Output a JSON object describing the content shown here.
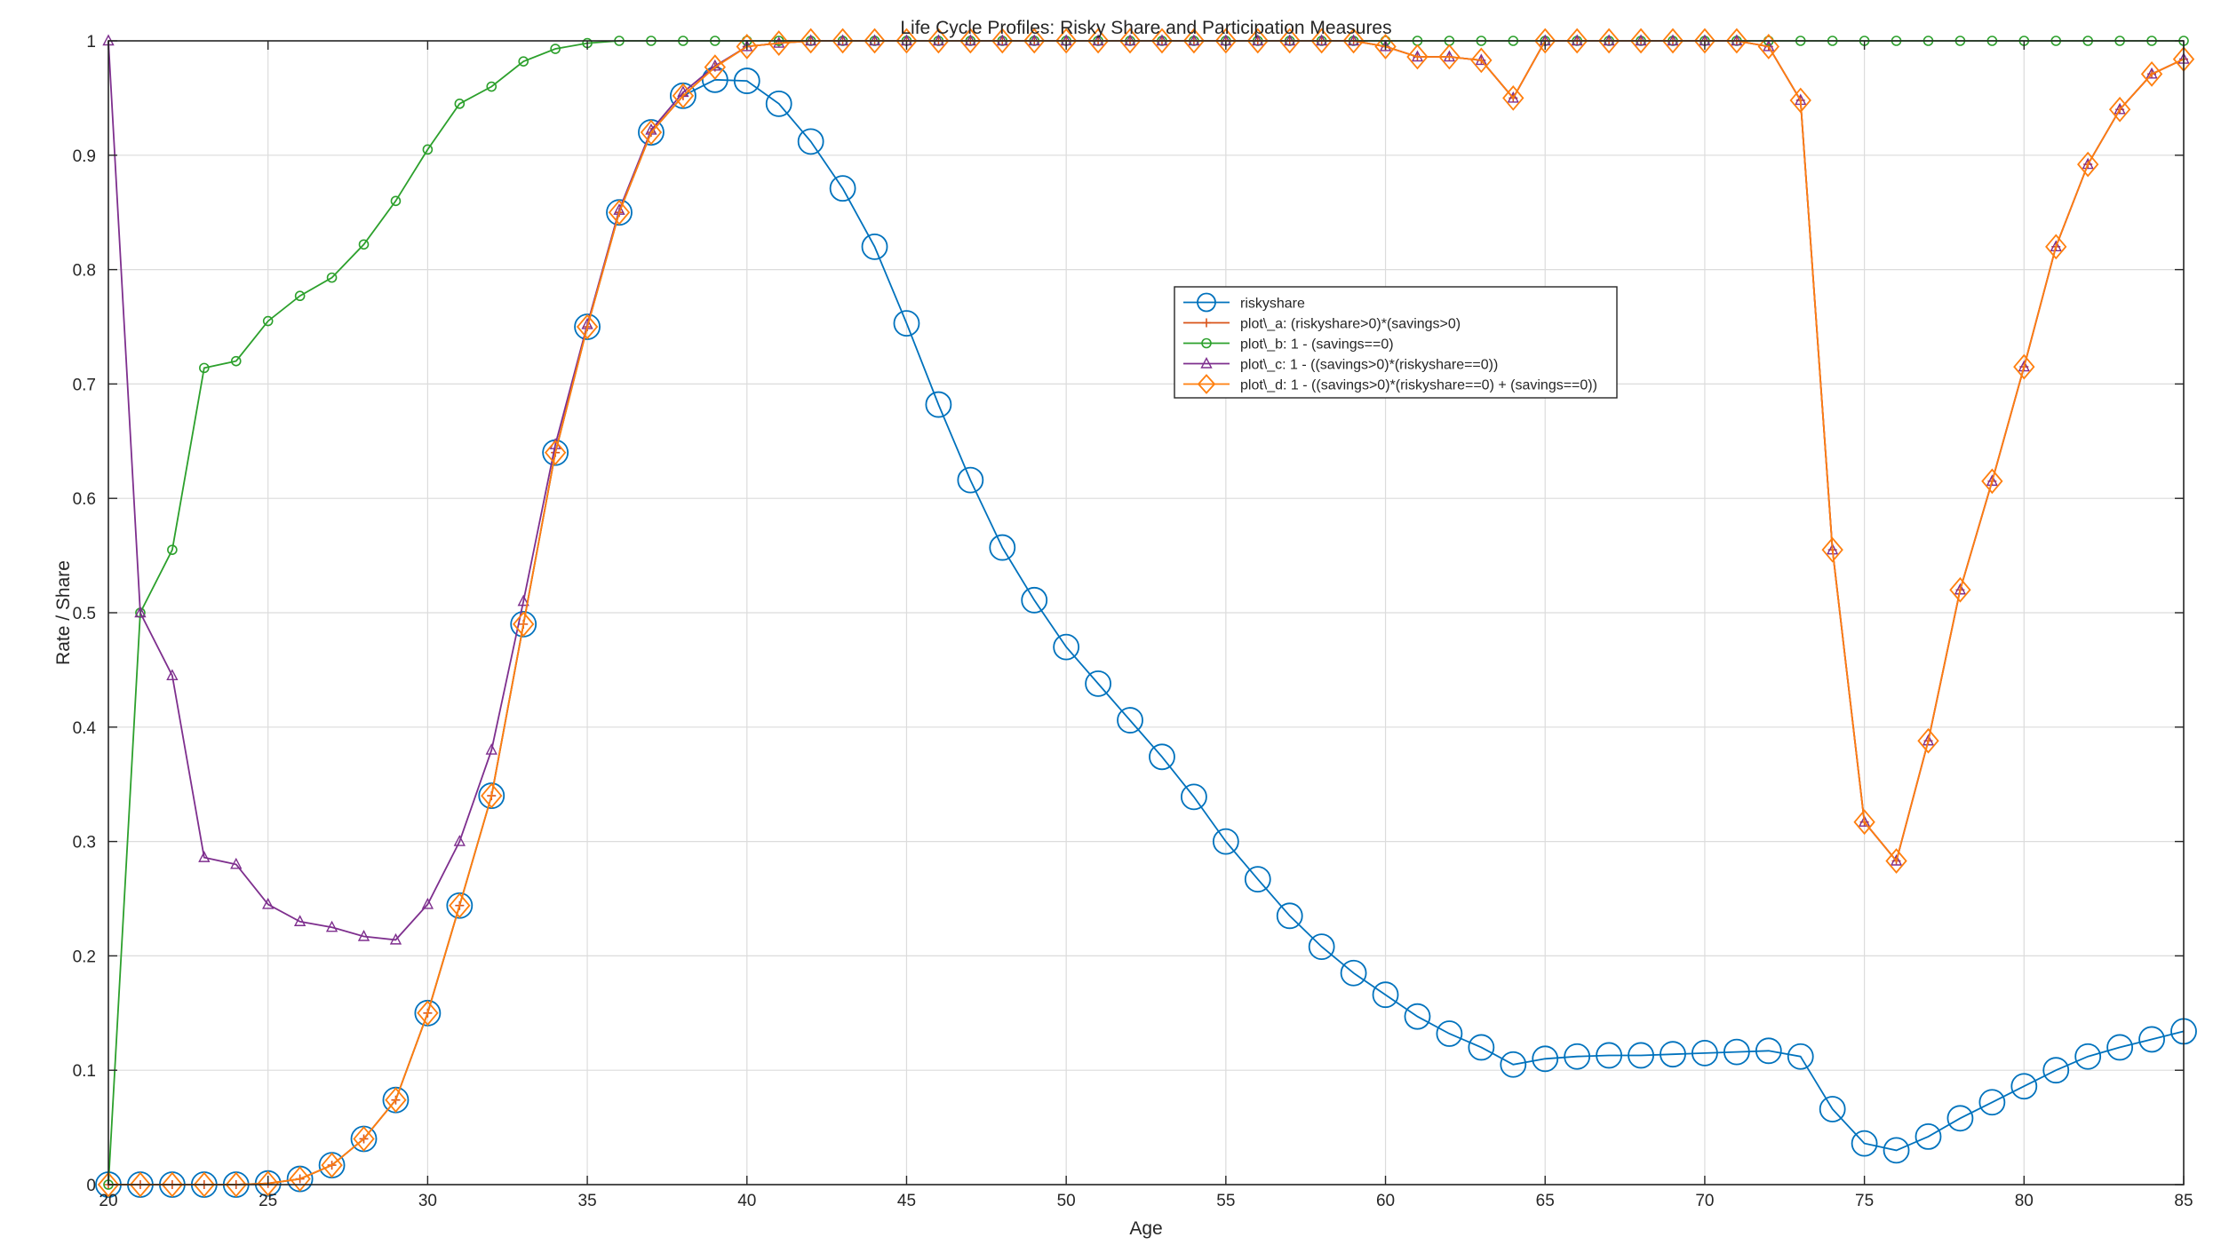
{
  "chart_data": {
    "type": "line",
    "title": "Life Cycle Profiles: Risky Share and Participation Measures",
    "xlabel": "Age",
    "ylabel": "Rate / Share",
    "xlim": [
      20,
      85
    ],
    "ylim": [
      0,
      1
    ],
    "xticks": [
      "20",
      "25",
      "30",
      "35",
      "40",
      "45",
      "50",
      "55",
      "60",
      "65",
      "70",
      "75",
      "80",
      "85"
    ],
    "yticks": [
      "0",
      "0.1",
      "0.2",
      "0.3",
      "0.4",
      "0.5",
      "0.6",
      "0.7",
      "0.8",
      "0.9",
      "1"
    ],
    "grid": true,
    "legend_position": "center",
    "x": [
      20,
      21,
      22,
      23,
      24,
      25,
      26,
      27,
      28,
      29,
      30,
      31,
      32,
      33,
      34,
      35,
      36,
      37,
      38,
      39,
      40,
      41,
      42,
      43,
      44,
      45,
      46,
      47,
      48,
      49,
      50,
      51,
      52,
      53,
      54,
      55,
      56,
      57,
      58,
      59,
      60,
      61,
      62,
      63,
      64,
      65,
      66,
      67,
      68,
      69,
      70,
      71,
      72,
      73,
      74,
      75,
      76,
      77,
      78,
      79,
      80,
      81,
      82,
      83,
      84,
      85
    ],
    "series": [
      {
        "name": "riskyshare",
        "color": "#0072BD",
        "marker": "circle",
        "values": [
          0,
          0,
          0,
          0,
          0,
          0.001,
          0.005,
          0.017,
          0.04,
          0.074,
          0.15,
          0.244,
          0.34,
          0.49,
          0.64,
          0.75,
          0.85,
          0.92,
          0.952,
          0.966,
          0.965,
          0.945,
          0.912,
          0.871,
          0.82,
          0.753,
          0.682,
          0.616,
          0.557,
          0.511,
          0.47,
          0.438,
          0.406,
          0.374,
          0.339,
          0.3,
          0.267,
          0.235,
          0.208,
          0.185,
          0.166,
          0.147,
          0.132,
          0.12,
          0.105,
          0.11,
          0.112,
          0.113,
          0.113,
          0.114,
          0.115,
          0.116,
          0.117,
          0.112,
          0.066,
          0.036,
          0.03,
          0.042,
          0.058,
          0.072,
          0.086,
          0.1,
          0.112,
          0.12,
          0.127,
          0.134
        ]
      },
      {
        "name": "plot\\_a: (riskyshare>0)*(savings>0)",
        "color": "#D95319",
        "marker": "plus",
        "values": [
          0,
          0,
          0,
          0,
          0,
          0.001,
          0.005,
          0.017,
          0.04,
          0.074,
          0.15,
          0.244,
          0.34,
          0.49,
          0.64,
          0.75,
          0.85,
          0.92,
          0.952,
          0.977,
          0.995,
          0.998,
          1,
          1,
          1,
          1,
          1,
          1,
          1,
          1,
          1,
          1,
          1,
          1,
          1,
          1,
          1,
          1,
          1,
          1,
          0.995,
          0.986,
          0.986,
          0.983,
          0.95,
          1,
          1,
          1,
          1,
          1,
          1,
          1,
          0.995,
          0.948,
          0.555,
          0.317,
          0.283,
          0.388,
          0.52,
          0.615,
          0.715,
          0.82,
          0.892,
          0.94,
          0.971,
          0.984
        ]
      },
      {
        "name": "plot\\_b: 1 - (savings==0)",
        "color": "#2CA02C",
        "marker": "circle-small",
        "values": [
          0,
          0.5,
          0.555,
          0.714,
          0.72,
          0.755,
          0.777,
          0.793,
          0.822,
          0.86,
          0.905,
          0.945,
          0.96,
          0.982,
          0.993,
          0.998,
          1,
          1,
          1,
          1,
          1,
          1,
          1,
          1,
          1,
          1,
          1,
          1,
          1,
          1,
          1,
          1,
          1,
          1,
          1,
          1,
          1,
          1,
          1,
          1,
          1,
          1,
          1,
          1,
          1,
          1,
          1,
          1,
          1,
          1,
          1,
          1,
          1,
          1,
          1,
          1,
          1,
          1,
          1,
          1,
          1,
          1,
          1,
          1,
          1,
          1
        ]
      },
      {
        "name": "plot\\_c: 1 - ((savings>0)*(riskyshare==0))",
        "color": "#7E2F8E",
        "marker": "triangle",
        "values": [
          1,
          0.5,
          0.445,
          0.286,
          0.28,
          0.245,
          0.23,
          0.225,
          0.217,
          0.214,
          0.245,
          0.3,
          0.38,
          0.51,
          0.647,
          0.752,
          0.852,
          0.922,
          0.955,
          0.978,
          0.995,
          0.998,
          1,
          1,
          1,
          1,
          1,
          1,
          1,
          1,
          1,
          1,
          1,
          1,
          1,
          1,
          1,
          1,
          1,
          1,
          0.995,
          0.986,
          0.986,
          0.983,
          0.95,
          1,
          1,
          1,
          1,
          1,
          1,
          1,
          0.995,
          0.948,
          0.555,
          0.317,
          0.283,
          0.388,
          0.52,
          0.615,
          0.715,
          0.82,
          0.892,
          0.94,
          0.971,
          0.984
        ]
      },
      {
        "name": "plot\\_d: 1 - ((savings>0)*(riskyshare==0) + (savings==0))",
        "color": "#FF7F0E",
        "marker": "diamond",
        "values": [
          0,
          0,
          0,
          0,
          0,
          0.001,
          0.005,
          0.017,
          0.04,
          0.074,
          0.15,
          0.244,
          0.34,
          0.49,
          0.64,
          0.75,
          0.85,
          0.92,
          0.952,
          0.977,
          0.995,
          0.998,
          1,
          1,
          1,
          1,
          1,
          1,
          1,
          1,
          1,
          1,
          1,
          1,
          1,
          1,
          1,
          1,
          1,
          1,
          0.995,
          0.986,
          0.986,
          0.983,
          0.95,
          1,
          1,
          1,
          1,
          1,
          1,
          1,
          0.995,
          0.948,
          0.555,
          0.317,
          0.283,
          0.388,
          0.52,
          0.615,
          0.715,
          0.82,
          0.892,
          0.94,
          0.971,
          0.984
        ]
      }
    ]
  }
}
